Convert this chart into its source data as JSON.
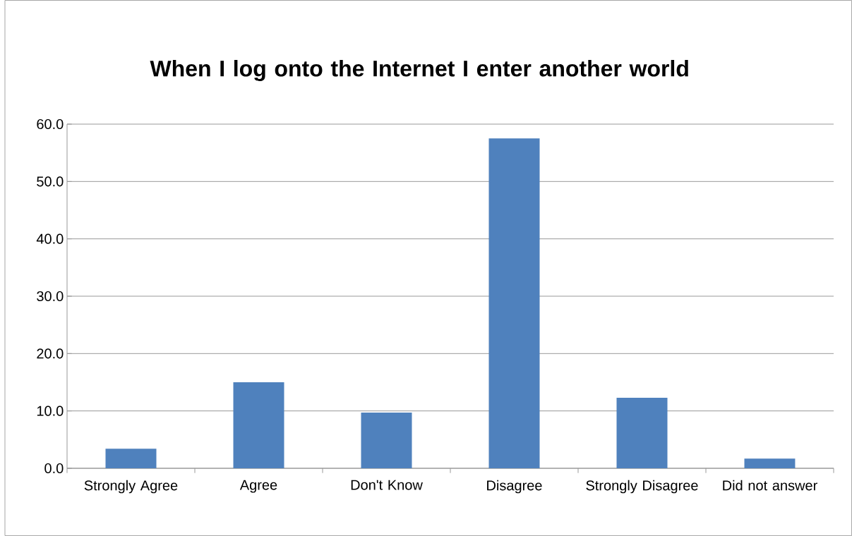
{
  "chart_data": {
    "type": "bar",
    "title": "When I log onto the Internet I enter another world",
    "categories": [
      "Strongly Agree",
      "Agree",
      "Don't Know",
      "Disagree",
      "Strongly Disagree",
      "Did not answer"
    ],
    "values": [
      3.4,
      15.0,
      9.7,
      57.5,
      12.3,
      1.7
    ],
    "color": "#4f81bd",
    "ylim": [
      0,
      60
    ],
    "yticks": [
      {
        "value": 0,
        "label": "0.0"
      },
      {
        "value": 10,
        "label": "10.0"
      },
      {
        "value": 20,
        "label": "20.0"
      },
      {
        "value": 30,
        "label": "30.0"
      },
      {
        "value": 40,
        "label": "40.0"
      },
      {
        "value": 50,
        "label": "50.0"
      },
      {
        "value": 60,
        "label": "60.0"
      }
    ],
    "grid": "y"
  }
}
